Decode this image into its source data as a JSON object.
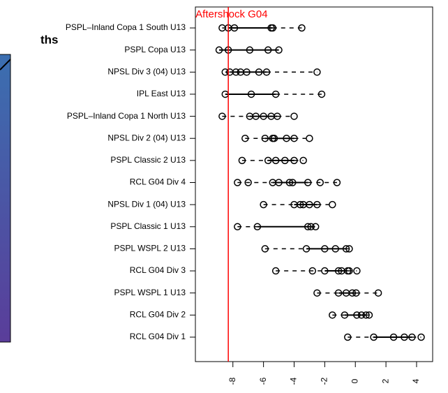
{
  "side_text": "ths",
  "chart_data": {
    "type": "boxstrip",
    "categories": [
      "PSPL–Inland Copa 1 South U13",
      "PSPL Copa U13",
      "NPSL Div 3 (04) U13",
      "IPL East U13",
      "PSPL–Inland Copa 1 North U13",
      "NPSL Div 2 (04) U13",
      "PSPL Classic 2 U13",
      "RCL G04 Div 4",
      "NPSL Div 1 (04) U13",
      "PSPL Classic 1 U13",
      "PSPL WSPL 2 U13",
      "RCL G04 Div 3",
      "PSPL WSPL 1 U13",
      "RCL G04 Div 2",
      "RCL G04 Div 1"
    ],
    "rows": [
      {
        "low": -8.7,
        "q1": -8.3,
        "q3": -5.4,
        "high": -3.5,
        "points": [
          -8.7,
          -8.3,
          -7.9,
          -5.5,
          -5.4,
          -3.5
        ]
      },
      {
        "low": -8.9,
        "q1": -8.9,
        "q3": -5.0,
        "high": -5.0,
        "points": [
          -8.9,
          -8.3,
          -6.9,
          -5.7,
          -5.0
        ]
      },
      {
        "low": -8.5,
        "q1": -8.2,
        "q3": -5.8,
        "high": -2.5,
        "points": [
          -8.5,
          -8.2,
          -7.8,
          -7.5,
          -7.1,
          -6.3,
          -5.8,
          -2.5
        ]
      },
      {
        "low": -8.5,
        "q1": -8.5,
        "q3": -5.2,
        "high": -2.2,
        "points": [
          -8.5,
          -6.8,
          -5.2,
          -2.2
        ]
      },
      {
        "low": -8.7,
        "q1": -6.9,
        "q3": -5.1,
        "high": -4.0,
        "points": [
          -8.7,
          -6.9,
          -6.5,
          -6.0,
          -5.5,
          -5.1,
          -4.0
        ]
      },
      {
        "low": -7.2,
        "q1": -5.9,
        "q3": -4.0,
        "high": -3.0,
        "points": [
          -7.2,
          -5.9,
          -5.4,
          -5.3,
          -4.5,
          -4.0,
          -3.0
        ]
      },
      {
        "low": -7.4,
        "q1": -5.7,
        "q3": -4.0,
        "high": -3.4,
        "points": [
          -7.4,
          -5.7,
          -5.2,
          -4.6,
          -4.0,
          -3.4
        ]
      },
      {
        "low": -7.7,
        "q1": -5.4,
        "q3": -3.1,
        "high": -1.2,
        "points": [
          -7.7,
          -7.0,
          -5.4,
          -5.0,
          -4.3,
          -4.1,
          -3.1,
          -2.3,
          -1.2
        ]
      },
      {
        "low": -6.0,
        "q1": -4.0,
        "q3": -2.5,
        "high": -1.5,
        "points": [
          -6.0,
          -4.0,
          -3.6,
          -3.4,
          -3.0,
          -2.5,
          -1.5
        ]
      },
      {
        "low": -7.7,
        "q1": -6.4,
        "q3": -2.9,
        "high": -2.6,
        "points": [
          -7.7,
          -6.4,
          -3.1,
          -2.9,
          -2.6
        ]
      },
      {
        "low": -5.9,
        "q1": -3.2,
        "q3": -0.6,
        "high": -0.4,
        "points": [
          -5.9,
          -3.2,
          -2.0,
          -1.3,
          -0.6,
          -0.4
        ]
      },
      {
        "low": -5.2,
        "q1": -2.0,
        "q3": -0.5,
        "high": 0.1,
        "points": [
          -5.2,
          -2.8,
          -2.0,
          -1.1,
          -0.9,
          -0.5,
          -0.4,
          0.1
        ]
      },
      {
        "low": -2.5,
        "q1": -1.1,
        "q3": 0.05,
        "high": 1.5,
        "points": [
          -2.5,
          -1.1,
          -0.6,
          -0.2,
          0.05,
          1.5
        ]
      },
      {
        "low": -1.5,
        "q1": -0.7,
        "q3": 0.7,
        "high": 0.9,
        "points": [
          -1.5,
          -0.7,
          0.1,
          0.4,
          0.7,
          0.9
        ]
      },
      {
        "low": -0.5,
        "q1": 1.2,
        "q3": 3.7,
        "high": 4.3,
        "points": [
          -0.5,
          1.2,
          2.5,
          3.2,
          3.7,
          4.3
        ]
      }
    ],
    "reference": {
      "value": -8.3,
      "label": "Aftershock G04",
      "color": "#ff0000"
    },
    "xlim": [
      -10.45,
      5.05
    ],
    "xticks": [
      -8,
      -6,
      -4,
      -2,
      0,
      2,
      4
    ]
  }
}
